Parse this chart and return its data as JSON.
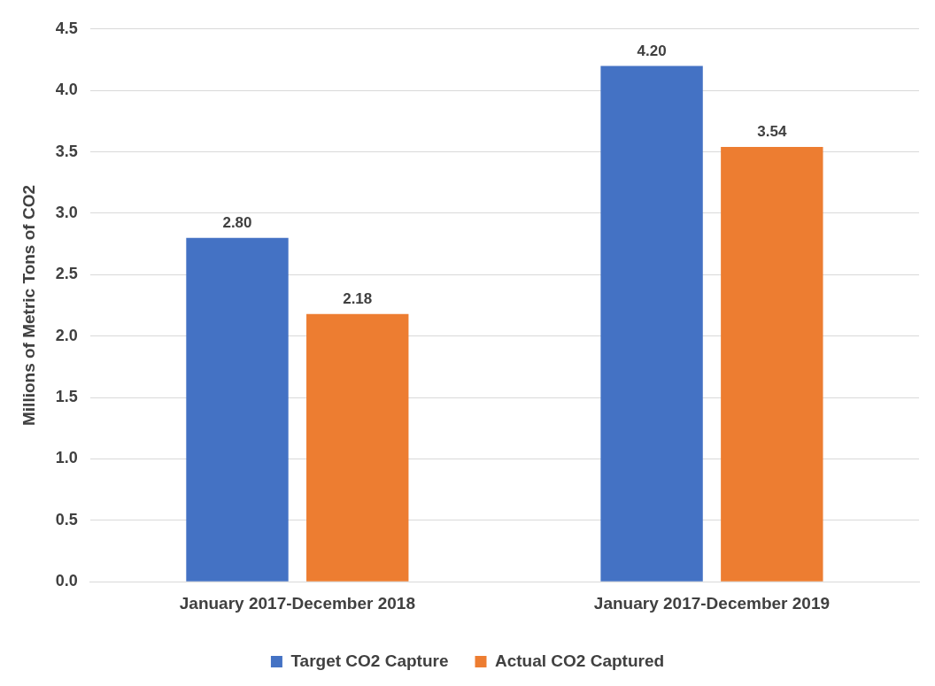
{
  "chart_data": {
    "type": "bar",
    "ylabel": "Millions of Metric Tons of CO2",
    "categories": [
      "January 2017-December 2018",
      "January 2017-December 2019"
    ],
    "series": [
      {
        "name": "Target CO2 Capture",
        "color": "#4472c4",
        "values": [
          2.8,
          4.2
        ],
        "value_labels": [
          "2.80",
          "4.20"
        ]
      },
      {
        "name": "Actual CO2 Captured",
        "color": "#ed7d31",
        "values": [
          2.18,
          3.54
        ],
        "value_labels": [
          "2.18",
          "3.54"
        ]
      }
    ],
    "ylim": [
      0,
      4.5
    ],
    "yticks": [
      {
        "value": 0,
        "label": "0.0"
      },
      0.5,
      {
        "value": 1,
        "label": "1.0"
      },
      1.5,
      {
        "value": 2,
        "label": "2.0"
      },
      2.5,
      {
        "value": 3,
        "label": "3.0"
      },
      3.5,
      {
        "value": 4,
        "label": "4.0"
      },
      4.5
    ],
    "grid": "y",
    "legend": "bottom"
  }
}
